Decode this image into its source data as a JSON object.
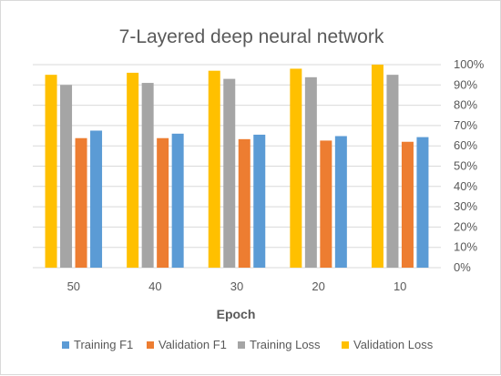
{
  "chart_data": {
    "type": "bar",
    "title": "7-Layered deep neural network",
    "xlabel": "Epoch",
    "ylabel": "",
    "categories": [
      "50",
      "40",
      "30",
      "20",
      "10"
    ],
    "ylim": [
      0,
      100
    ],
    "yticks": [
      "0%",
      "10%",
      "20%",
      "30%",
      "40%",
      "50%",
      "60%",
      "70%",
      "80%",
      "90%",
      "100%"
    ],
    "y_axis_position": "right",
    "grid": true,
    "legend_position": "bottom",
    "bar_order": [
      "Validation Loss",
      "Training Loss",
      "Validation F1",
      "Training F1"
    ],
    "series": [
      {
        "name": "Training F1",
        "color": "#5b9bd5",
        "values": [
          67.5,
          66.0,
          65.5,
          64.8,
          64.3
        ]
      },
      {
        "name": "Validation F1",
        "color": "#ed7d31",
        "values": [
          63.8,
          63.8,
          63.3,
          62.6,
          62.0
        ]
      },
      {
        "name": "Training Loss",
        "color": "#a5a5a5",
        "values": [
          90.0,
          91.0,
          93.0,
          93.8,
          95.0
        ]
      },
      {
        "name": "Validation Loss",
        "color": "#ffc000",
        "values": [
          95.0,
          96.0,
          97.0,
          98.0,
          100.0
        ]
      }
    ]
  }
}
